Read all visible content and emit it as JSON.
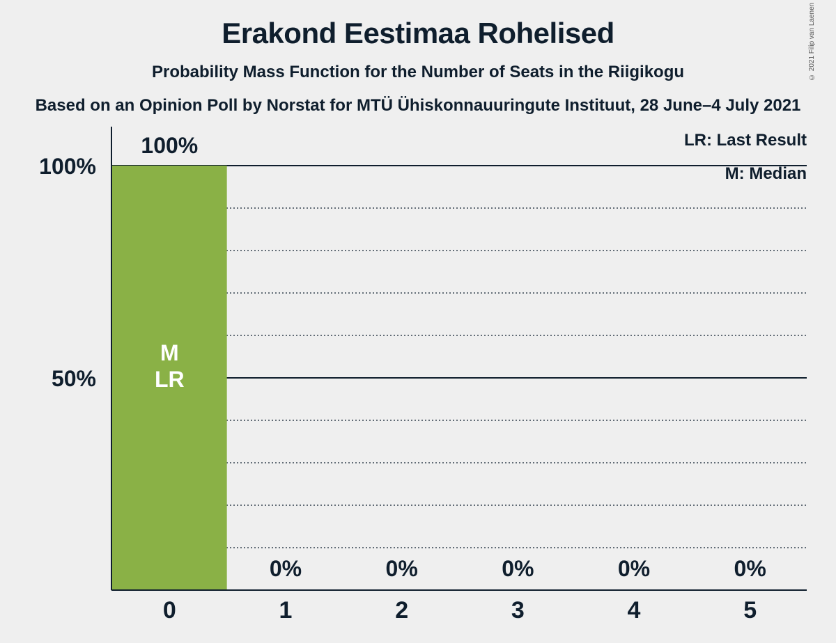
{
  "title": "Erakond Eestimaa Rohelised",
  "subtitle": "Probability Mass Function for the Number of Seats in the Riigikogu",
  "source": "Based on an Opinion Poll by Norstat for MTÜ Ühiskonnauuringute Instituut, 28 June–4 July 2021",
  "copyright": "© 2021 Filip van Laenen",
  "legend": {
    "last_result": "LR: Last Result",
    "median": "M: Median"
  },
  "colors": {
    "bar": "#8ab146",
    "background": "#efefef",
    "text": "#0f1e2d",
    "bar_label": "#ffffff"
  },
  "chart_data": {
    "type": "bar",
    "categories": [
      "0",
      "1",
      "2",
      "3",
      "4",
      "5"
    ],
    "values": [
      100,
      0,
      0,
      0,
      0,
      0
    ],
    "value_labels": [
      "100%",
      "0%",
      "0%",
      "0%",
      "0%",
      "0%"
    ],
    "bar_markers": [
      "M",
      "LR"
    ],
    "marker_category": "0",
    "ylim": [
      0,
      100
    ],
    "y_ticks": [
      {
        "value": 50,
        "label": "50%"
      },
      {
        "value": 100,
        "label": "100%"
      }
    ],
    "y_dotted_gridlines": [
      10,
      20,
      30,
      40,
      60,
      70,
      80,
      90
    ],
    "title": "Erakond Eestimaa Rohelised",
    "xlabel": "",
    "ylabel": "",
    "grid": true,
    "legend_position": "top-right"
  }
}
